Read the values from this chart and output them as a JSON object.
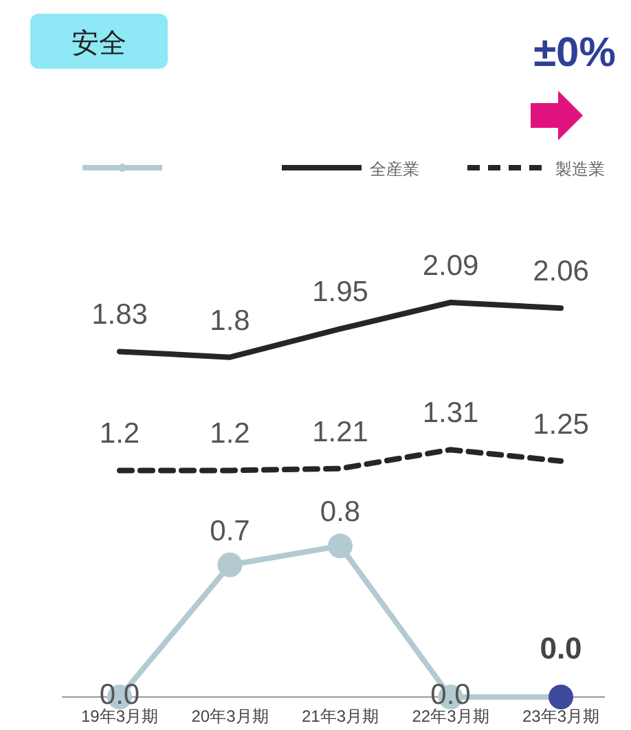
{
  "chart_data": {
    "type": "line",
    "title": "安全",
    "annotations": [
      "±0%"
    ],
    "categories": [
      "19年3月期",
      "20年3月期",
      "21年3月期",
      "22年3月期",
      "23年3月期"
    ],
    "series": [
      {
        "color": "#b4cad2",
        "values": [
          0,
          0.7,
          0.8,
          0,
          0
        ],
        "value_labels": [
          "0.0",
          "0.7",
          "0.8",
          "0.0",
          "0.0"
        ],
        "marker": "circle",
        "line_style": "solid",
        "colors": [
          "#b4cad2",
          "#b4cad2",
          "#b4cad2",
          "#b4cad2",
          "#3d4a9c"
        ]
      },
      {
        "name": "全産業",
        "color": "#262626",
        "values": [
          1.83,
          1.8,
          1.95,
          2.09,
          2.06
        ],
        "value_labels": [
          "1.83",
          "1.8",
          "1.95",
          "2.09",
          "2.06"
        ],
        "marker": "none",
        "line_style": "solid"
      },
      {
        "name": "製造業",
        "color": "#262626",
        "values": [
          1.2,
          1.2,
          1.21,
          1.31,
          1.25
        ],
        "value_labels": [
          "1.2",
          "1.2",
          "1.21",
          "1.31",
          "1.25"
        ],
        "marker": "none",
        "line_style": "dashed"
      }
    ],
    "legend": "top"
  }
}
